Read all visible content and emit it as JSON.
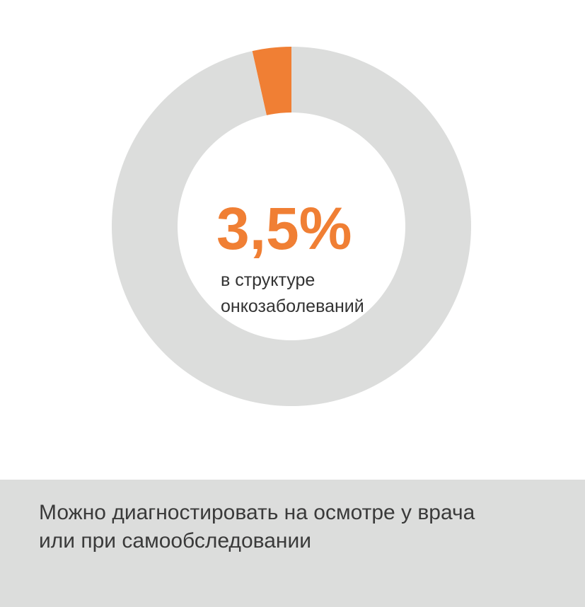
{
  "chart_data": {
    "type": "donut",
    "values": [
      3.5,
      96.5
    ],
    "value_labels": [
      "3,5%",
      null
    ],
    "colors": [
      "#f07f34",
      "#dcdddc"
    ],
    "subtitle_lines": [
      "в структуре",
      "онкозаболеваний"
    ]
  },
  "footer": {
    "lines": [
      "Можно диагностировать на осмотре у врача",
      "или при самообследовании"
    ]
  }
}
